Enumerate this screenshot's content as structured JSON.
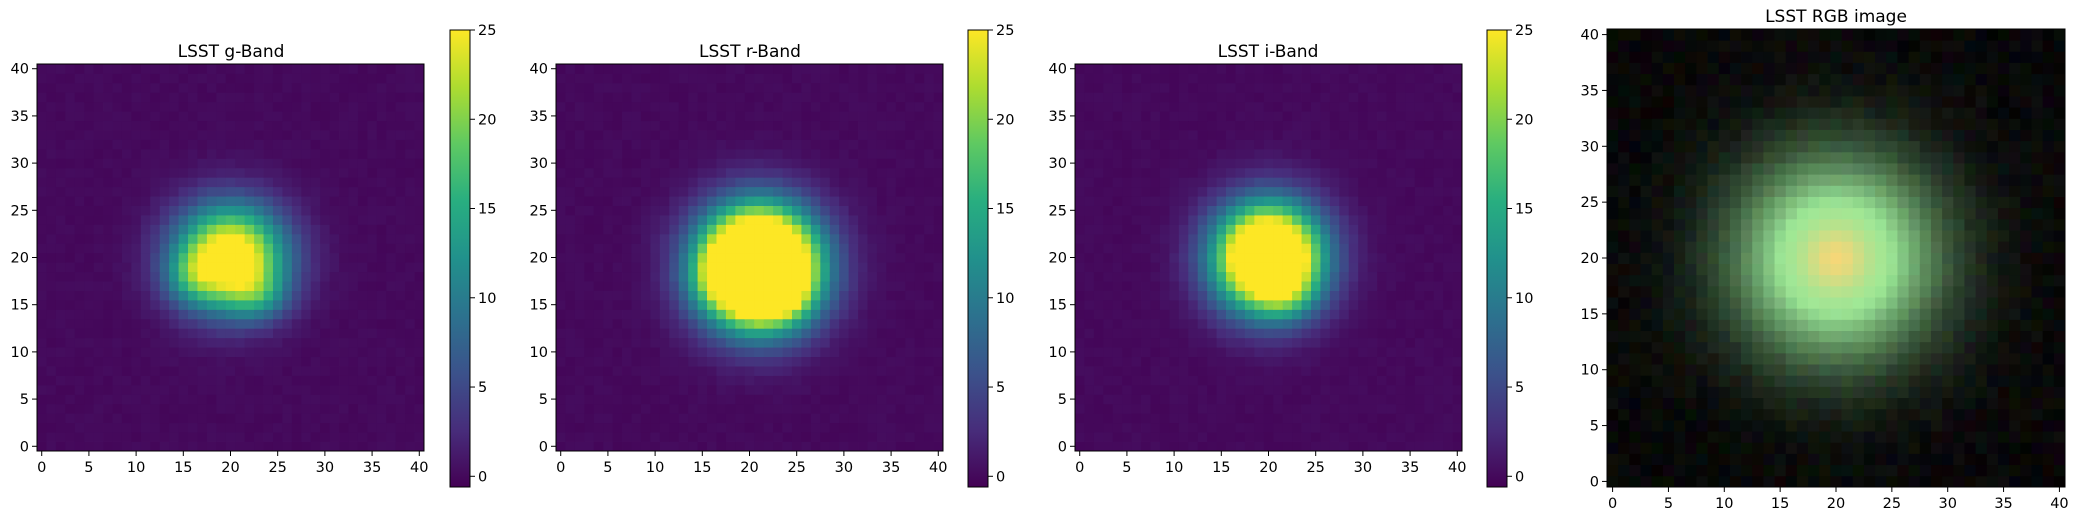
{
  "chart_data": [
    {
      "type": "heatmap",
      "title": "LSST g-Band",
      "xlim": [
        -0.5,
        40.5
      ],
      "ylim": [
        -0.5,
        40.5
      ],
      "x_ticks": [
        0,
        5,
        10,
        15,
        20,
        25,
        30,
        35,
        40
      ],
      "y_ticks": [
        0,
        5,
        10,
        15,
        20,
        25,
        30,
        35,
        40
      ],
      "colorbar": {
        "range": [
          -0.6,
          25
        ],
        "ticks": [
          0,
          5,
          10,
          15,
          20,
          25
        ],
        "colormap": "viridis"
      },
      "image": {
        "shape": [
          41,
          41
        ],
        "background": 0,
        "components": [
          {
            "center": [
              20,
              20
            ],
            "sigma": [
              4.0,
              3.8
            ],
            "peak": 30
          },
          {
            "center": [
              16,
              18
            ],
            "sigma": [
              2.0,
              2.0
            ],
            "peak": 6
          },
          {
            "center": [
              23,
              16
            ],
            "sigma": [
              2.2,
              1.8
            ],
            "peak": 6
          }
        ]
      }
    },
    {
      "type": "heatmap",
      "title": "LSST r-Band",
      "xlim": [
        -0.5,
        40.5
      ],
      "ylim": [
        -0.5,
        40.5
      ],
      "x_ticks": [
        0,
        5,
        10,
        15,
        20,
        25,
        30,
        35,
        40
      ],
      "y_ticks": [
        0,
        5,
        10,
        15,
        20,
        25,
        30,
        35,
        40
      ],
      "colorbar": {
        "range": [
          -0.6,
          25
        ],
        "ticks": [
          0,
          5,
          10,
          15,
          20,
          25
        ],
        "colormap": "viridis"
      },
      "image": {
        "shape": [
          41,
          41
        ],
        "background": 0,
        "components": [
          {
            "center": [
              21,
              19
            ],
            "sigma": [
              4.2,
              4.2
            ],
            "peak": 55
          },
          {
            "center": [
              17,
              18
            ],
            "sigma": [
              2.0,
              2.0
            ],
            "peak": 5
          },
          {
            "center": [
              23,
              16
            ],
            "sigma": [
              2.2,
              1.8
            ],
            "peak": 5
          }
        ]
      }
    },
    {
      "type": "heatmap",
      "title": "LSST i-Band",
      "xlim": [
        -0.5,
        40.5
      ],
      "ylim": [
        -0.5,
        40.5
      ],
      "x_ticks": [
        0,
        5,
        10,
        15,
        20,
        25,
        30,
        35,
        40
      ],
      "y_ticks": [
        0,
        5,
        10,
        15,
        20,
        25,
        30,
        35,
        40
      ],
      "colorbar": {
        "range": [
          -0.6,
          25
        ],
        "ticks": [
          0,
          5,
          10,
          15,
          20,
          25
        ],
        "colormap": "viridis"
      },
      "image": {
        "shape": [
          41,
          41
        ],
        "background": 0,
        "components": [
          {
            "center": [
              20,
              20
            ],
            "sigma": [
              3.9,
              3.9
            ],
            "peak": 42
          },
          {
            "center": [
              22,
              16
            ],
            "sigma": [
              2.0,
              1.8
            ],
            "peak": 4
          }
        ]
      }
    },
    {
      "type": "heatmap",
      "title": "LSST RGB image",
      "xlim": [
        -0.5,
        40.5
      ],
      "ylim": [
        -0.5,
        40.5
      ],
      "x_ticks": [
        0,
        5,
        10,
        15,
        20,
        25,
        30,
        35,
        40
      ],
      "y_ticks": [
        0,
        5,
        10,
        15,
        20,
        25,
        30,
        35,
        40
      ],
      "image": {
        "shape": [
          41,
          41
        ],
        "background": "#000000",
        "center": [
          20,
          20
        ],
        "sigma": 6.2,
        "core_color": "#f5d778",
        "halo_color": "#96e696",
        "noise_amplitude": 0.06
      }
    }
  ]
}
